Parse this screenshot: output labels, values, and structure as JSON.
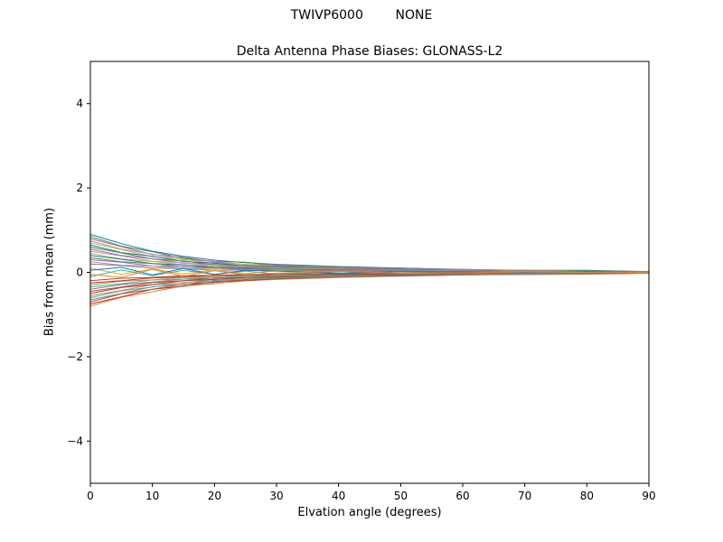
{
  "figure": {
    "suptitle": "TWIVP6000        NONE"
  },
  "chart_data": {
    "type": "line",
    "title": "Delta Antenna Phase Biases: GLONASS-L2",
    "xlabel": "Elvation angle (degrees)",
    "ylabel": "Bias from mean (mm)",
    "xlim": [
      0,
      90
    ],
    "ylim": [
      -5,
      5
    ],
    "xticks": [
      0,
      10,
      20,
      30,
      40,
      50,
      60,
      70,
      80,
      90
    ],
    "yticks": [
      -4,
      -2,
      0,
      2,
      4
    ],
    "grid": false,
    "legend": "none",
    "x": [
      0,
      5,
      10,
      15,
      20,
      25,
      30,
      40,
      50,
      60,
      70,
      80,
      90
    ],
    "series": [
      {
        "name": "s01",
        "color": "#1f77b4",
        "y": [
          0.9,
          0.68,
          0.5,
          0.38,
          0.29,
          0.23,
          0.19,
          0.14,
          0.1,
          0.07,
          0.05,
          0.05,
          0.02
        ]
      },
      {
        "name": "s02",
        "color": "#ff7f0e",
        "y": [
          -0.8,
          -0.59,
          -0.46,
          -0.32,
          -0.27,
          -0.2,
          -0.17,
          -0.12,
          -0.09,
          -0.06,
          -0.05,
          -0.04,
          -0.02
        ]
      },
      {
        "name": "s03",
        "color": "#2ca02c",
        "y": [
          0.85,
          0.62,
          0.49,
          0.33,
          0.26,
          0.24,
          0.17,
          0.12,
          0.1,
          0.06,
          0.05,
          0.04,
          0.01
        ]
      },
      {
        "name": "s04",
        "color": "#d62728",
        "y": [
          -0.75,
          -0.58,
          -0.4,
          -0.33,
          -0.22,
          -0.2,
          -0.15,
          -0.11,
          -0.08,
          -0.06,
          -0.05,
          -0.04,
          -0.02
        ]
      },
      {
        "name": "s05",
        "color": "#9467bd",
        "y": [
          0.8,
          0.61,
          0.42,
          0.36,
          0.24,
          0.19,
          0.18,
          0.13,
          0.08,
          0.07,
          0.04,
          0.03,
          0.02
        ]
      },
      {
        "name": "s06",
        "color": "#8c564b",
        "y": [
          -0.7,
          -0.51,
          -0.4,
          -0.28,
          -0.24,
          -0.17,
          -0.15,
          -0.1,
          -0.08,
          -0.06,
          -0.04,
          -0.03,
          -0.02
        ]
      },
      {
        "name": "s07",
        "color": "#e377c2",
        "y": [
          0.75,
          0.55,
          0.43,
          0.3,
          0.26,
          0.18,
          0.15,
          0.1,
          0.09,
          0.05,
          0.05,
          0.03,
          0.01
        ]
      },
      {
        "name": "s08",
        "color": "#7f7f7f",
        "y": [
          -0.65,
          -0.5,
          -0.34,
          -0.29,
          -0.19,
          -0.18,
          -0.13,
          -0.1,
          -0.07,
          -0.05,
          -0.04,
          -0.03,
          -0.02
        ]
      },
      {
        "name": "s09",
        "color": "#bcbd22",
        "y": [
          0.7,
          0.54,
          0.37,
          0.31,
          0.21,
          0.19,
          0.14,
          0.11,
          0.07,
          0.06,
          0.03,
          0.03,
          0.02
        ]
      },
      {
        "name": "s10",
        "color": "#17becf",
        "y": [
          -0.6,
          -0.44,
          -0.35,
          -0.24,
          -0.2,
          -0.15,
          -0.13,
          -0.09,
          -0.07,
          -0.05,
          -0.04,
          -0.03,
          -0.01
        ]
      },
      {
        "name": "s11",
        "color": "#1f77b4",
        "y": [
          0.65,
          0.47,
          0.38,
          0.26,
          0.22,
          0.15,
          0.14,
          0.09,
          0.08,
          0.04,
          0.04,
          0.02,
          0.01
        ]
      },
      {
        "name": "s12",
        "color": "#ff7f0e",
        "y": [
          -0.55,
          -0.43,
          -0.29,
          -0.25,
          -0.16,
          -0.15,
          -0.11,
          -0.08,
          -0.06,
          -0.04,
          -0.03,
          -0.03,
          -0.01
        ]
      },
      {
        "name": "s13",
        "color": "#2ca02c",
        "y": [
          0.6,
          0.46,
          0.32,
          0.27,
          0.18,
          0.16,
          0.12,
          0.1,
          0.06,
          0.05,
          0.03,
          0.03,
          0.01
        ]
      },
      {
        "name": "s14",
        "color": "#d62728",
        "y": [
          -0.5,
          -0.36,
          -0.29,
          -0.2,
          -0.17,
          -0.12,
          -0.11,
          -0.07,
          -0.06,
          -0.04,
          -0.03,
          -0.02,
          -0.01
        ]
      },
      {
        "name": "s15",
        "color": "#9467bd",
        "y": [
          0.55,
          0.4,
          0.32,
          0.22,
          0.19,
          0.13,
          0.12,
          0.08,
          0.07,
          0.04,
          0.03,
          0.02,
          0.01
        ]
      },
      {
        "name": "s16",
        "color": "#8c564b",
        "y": [
          -0.45,
          -0.35,
          -0.24,
          -0.2,
          -0.13,
          -0.12,
          -0.09,
          -0.07,
          -0.05,
          -0.04,
          -0.02,
          -0.02,
          -0.01
        ]
      },
      {
        "name": "s17",
        "color": "#e377c2",
        "y": [
          0.5,
          0.39,
          0.26,
          0.23,
          0.15,
          0.14,
          0.1,
          0.08,
          0.05,
          0.04,
          0.02,
          0.02,
          0.01
        ]
      },
      {
        "name": "s18",
        "color": "#7f7f7f",
        "y": [
          -0.4,
          -0.29,
          -0.23,
          -0.16,
          -0.14,
          -0.1,
          -0.09,
          -0.06,
          -0.04,
          -0.03,
          -0.03,
          -0.02,
          -0.01
        ]
      },
      {
        "name": "s19",
        "color": "#bcbd22",
        "y": [
          0.45,
          0.32,
          0.26,
          0.18,
          0.15,
          0.11,
          0.1,
          0.06,
          0.05,
          0.03,
          0.03,
          0.02,
          0.01
        ]
      },
      {
        "name": "s20",
        "color": "#17becf",
        "y": [
          -0.35,
          -0.27,
          -0.18,
          -0.16,
          -0.1,
          -0.1,
          -0.07,
          -0.05,
          -0.04,
          -0.03,
          -0.02,
          -0.02,
          -0.01
        ]
      },
      {
        "name": "s21",
        "color": "#1f77b4",
        "y": [
          0.4,
          0.31,
          0.21,
          0.18,
          0.12,
          0.11,
          0.08,
          0.06,
          0.04,
          0.03,
          0.02,
          0.02,
          0.01
        ]
      },
      {
        "name": "s22",
        "color": "#ff7f0e",
        "y": [
          -0.3,
          -0.21,
          -0.18,
          -0.12,
          -0.1,
          -0.07,
          -0.07,
          -0.04,
          -0.03,
          -0.03,
          -0.02,
          -0.01,
          -0.01
        ]
      },
      {
        "name": "s23",
        "color": "#2ca02c",
        "y": [
          0.35,
          0.25,
          0.21,
          0.13,
          0.12,
          0.08,
          0.08,
          0.05,
          0.04,
          0.02,
          0.02,
          0.01,
          0.01
        ]
      },
      {
        "name": "s24",
        "color": "#d62728",
        "y": [
          -0.25,
          -0.2,
          -0.13,
          -0.11,
          -0.07,
          -0.07,
          -0.05,
          -0.04,
          -0.03,
          -0.02,
          -0.01,
          -0.01,
          0.0
        ]
      },
      {
        "name": "s25",
        "color": "#9467bd",
        "y": [
          0.3,
          0.24,
          0.15,
          0.14,
          0.09,
          0.09,
          0.06,
          0.05,
          0.03,
          0.03,
          0.01,
          0.01,
          0.0
        ]
      },
      {
        "name": "s26",
        "color": "#8c564b",
        "y": [
          -0.2,
          -0.14,
          -0.12,
          -0.08,
          -0.07,
          -0.05,
          -0.04,
          -0.03,
          -0.02,
          -0.02,
          -0.01,
          -0.01,
          0.0
        ]
      },
      {
        "name": "s27",
        "color": "#e377c2",
        "y": [
          0.25,
          0.17,
          0.15,
          0.09,
          0.09,
          0.06,
          0.06,
          0.03,
          0.03,
          0.02,
          0.02,
          0.01,
          0.0
        ]
      },
      {
        "name": "s28",
        "color": "#7f7f7f",
        "y": [
          0.2,
          0.16,
          0.1,
          0.09,
          0.05,
          0.06,
          0.04,
          0.03,
          0.02,
          0.02,
          0.01,
          0.01,
          0.0
        ]
      },
      {
        "name": "s29",
        "color": "#bcbd22",
        "y": [
          0.1,
          -0.05,
          0.08,
          -0.04,
          0.06,
          -0.03,
          0.04,
          -0.02,
          0.02,
          -0.01,
          0.01,
          0.0,
          0.0
        ]
      },
      {
        "name": "s30",
        "color": "#17becf",
        "y": [
          -0.1,
          0.06,
          -0.08,
          0.05,
          -0.05,
          0.03,
          -0.04,
          0.02,
          -0.02,
          0.01,
          -0.01,
          0.0,
          0.0
        ]
      },
      {
        "name": "s31",
        "color": "#1f77b4",
        "y": [
          0.05,
          0.12,
          -0.06,
          0.09,
          -0.05,
          0.05,
          0.03,
          -0.02,
          0.02,
          0.01,
          -0.01,
          0.01,
          0.0
        ]
      },
      {
        "name": "s32",
        "color": "#ff7f0e",
        "y": [
          -0.05,
          -0.12,
          0.07,
          -0.09,
          0.04,
          -0.06,
          -0.02,
          0.03,
          -0.02,
          -0.01,
          0.01,
          0.0,
          0.0
        ]
      }
    ]
  }
}
